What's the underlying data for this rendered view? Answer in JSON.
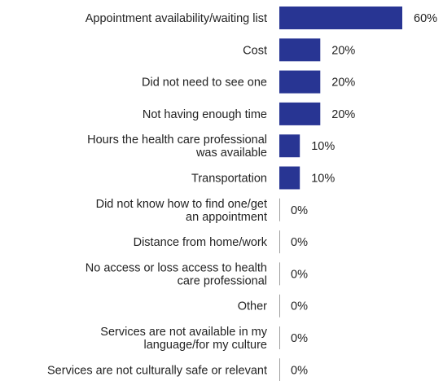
{
  "chart_data": {
    "type": "bar",
    "orientation": "horizontal",
    "categories": [
      [
        "Appointment availability/waiting list"
      ],
      [
        "Cost"
      ],
      [
        "Did not need to see one"
      ],
      [
        "Not having enough time"
      ],
      [
        "Hours the health care professional",
        "was available"
      ],
      [
        "Transportation"
      ],
      [
        "Did not know how to find one/get",
        "an appointment"
      ],
      [
        "Distance from home/work"
      ],
      [
        "No access or loss access to health",
        "care professional"
      ],
      [
        "Other"
      ],
      [
        "Services are not available in my",
        "language/for my culture"
      ],
      [
        "Services are not culturally safe or relevant"
      ]
    ],
    "values": [
      60,
      20,
      20,
      20,
      10,
      10,
      0,
      0,
      0,
      0,
      0,
      0
    ],
    "value_labels": [
      "60%",
      "20%",
      "20%",
      "20%",
      "10%",
      "10%",
      "0%",
      "0%",
      "0%",
      "0%",
      "0%",
      "0%"
    ],
    "xlim": [
      0,
      60
    ],
    "bar_color": "#283593",
    "axis_color": "#9e9e9e",
    "grid": false,
    "legend": "none"
  }
}
